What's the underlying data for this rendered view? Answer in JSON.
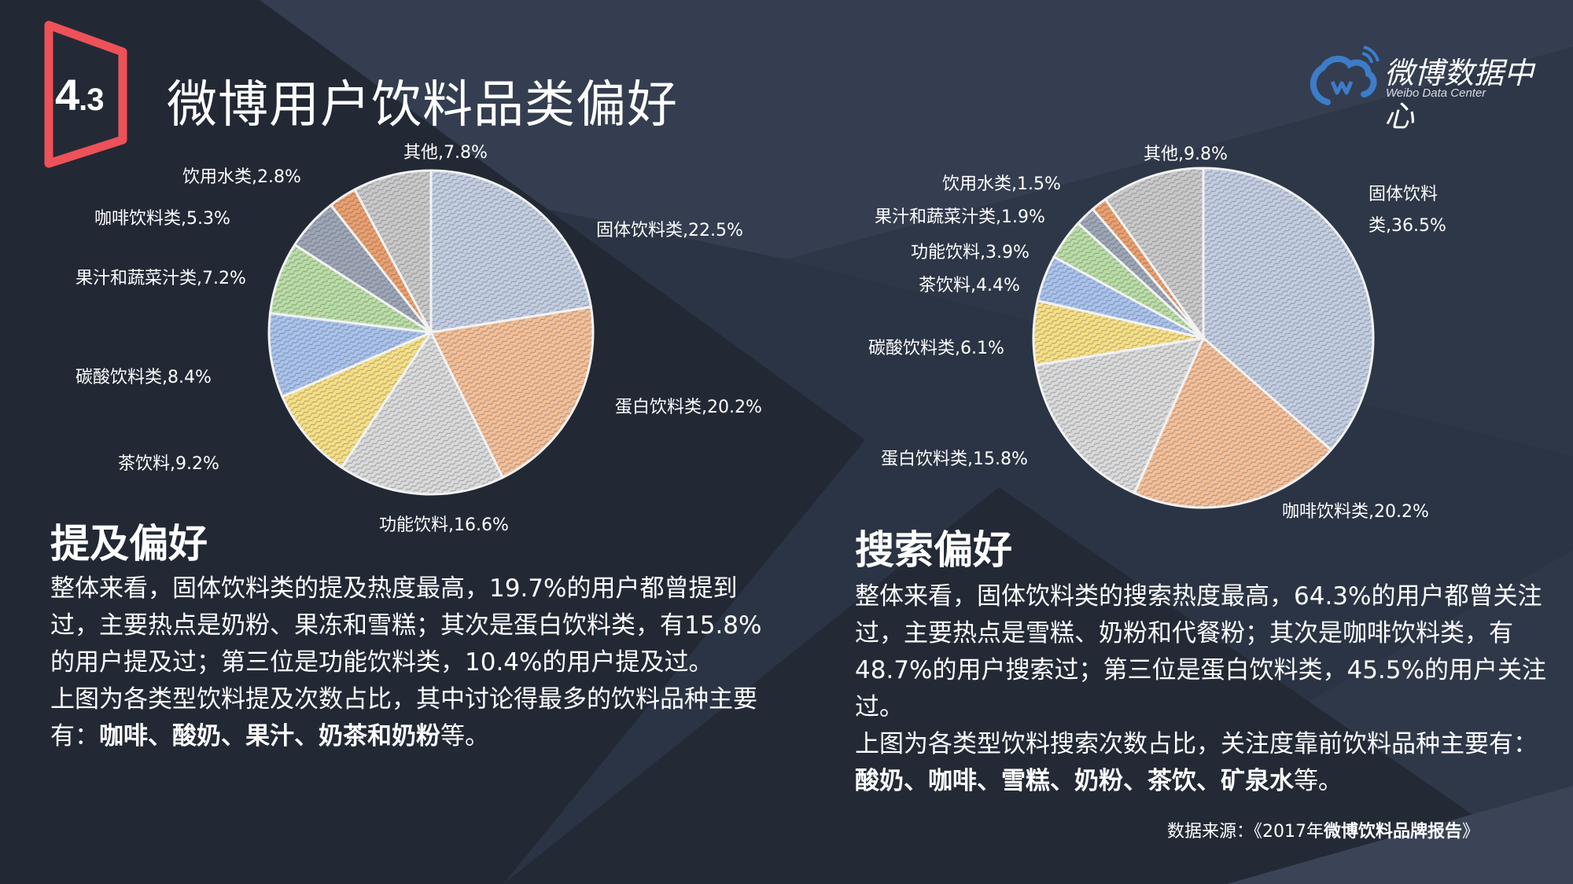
{
  "header": {
    "badge": {
      "major": "4",
      "minor": ".3",
      "color": "#ee5158"
    },
    "title": "微博用户饮料品类偏好"
  },
  "logo": {
    "name_cn": "微博数据中心",
    "name_en": "Weibo Data Center",
    "icon": "weibo-cloud-icon",
    "color": "#3d7cc9"
  },
  "palette": [
    "#c3cde0",
    "#f3bf98",
    "#d9d9d9",
    "#f5de85",
    "#a9c2ea",
    "#b9dca5",
    "#9ea6b5",
    "#e9a06e",
    "#c8c8c8"
  ],
  "chart_data": [
    {
      "type": "pie",
      "title": "提及偏好",
      "start_angle": "12 o'clock, clockwise",
      "categories": [
        "固体饮料类",
        "蛋白饮料类",
        "功能饮料",
        "茶饮料",
        "碳酸饮料类",
        "果汁和蔬菜汁类",
        "咖啡饮料类",
        "饮用水类",
        "其他"
      ],
      "values": [
        22.5,
        20.2,
        16.6,
        9.2,
        8.4,
        7.2,
        5.3,
        2.8,
        7.8
      ],
      "unit": "%",
      "labels": [
        "固体饮料类,22.5%",
        "蛋白饮料类,20.2%",
        "功能饮料,16.6%",
        "茶饮料,9.2%",
        "碳酸饮料类,8.4%",
        "果汁和蔬菜汁类,7.2%",
        "咖啡饮料类,5.3%",
        "饮用水类,2.8%",
        "其他,7.8%"
      ]
    },
    {
      "type": "pie",
      "title": "搜索偏好",
      "start_angle": "12 o'clock, clockwise",
      "categories": [
        "固体饮料类",
        "咖啡饮料类",
        "蛋白饮料类",
        "碳酸饮料类",
        "茶饮料",
        "功能饮料",
        "果汁和蔬菜汁类",
        "饮用水类",
        "其他"
      ],
      "values": [
        36.5,
        20.2,
        15.8,
        6.1,
        4.4,
        3.9,
        1.9,
        1.5,
        9.8
      ],
      "unit": "%",
      "labels": [
        "固体饮料类,36.5%",
        "咖啡饮料类,20.2%",
        "蛋白饮料类,15.8%",
        "碳酸饮料类,6.1%",
        "茶饮料,4.4%",
        "功能饮料,3.9%",
        "果汁和蔬菜汁类,1.9%",
        "饮用水类,1.5%",
        "其他,9.8%"
      ]
    }
  ],
  "left": {
    "heading": "提及偏好",
    "para1": "整体来看，固体饮料类的提及热度最高，19.7%的用户都曾提到过，主要热点是奶粉、果冻和雪糕；其次是蛋白饮料类，有15.8%的用户提及过；第三位是功能饮料类，10.4%的用户提及过。",
    "para2_prefix": "上图为各类型饮料提及次数占比，其中讨论得最多的饮料品种主要有：",
    "para2_bold": "咖啡、酸奶、果汁、奶茶和奶粉",
    "para2_suffix": "等。"
  },
  "right": {
    "heading": "搜索偏好",
    "para1": "整体来看，固体饮料类的搜索热度最高，64.3%的用户都曾关注过，主要热点是雪糕、奶粉和代餐粉；其次是咖啡饮料类，有48.7%的用户搜索过；第三位是蛋白饮料类，45.5%的用户关注过。",
    "para2_prefix": "上图为各类型饮料搜索次数占比，关注度靠前饮料品种主要有：",
    "para2_bold": "酸奶、咖啡、雪糕、奶粉、茶饮、矿泉水",
    "para2_suffix": "等。"
  },
  "source": {
    "prefix": "数据来源：《2017年",
    "bold": "微博饮料品牌报告",
    "suffix": "》"
  }
}
